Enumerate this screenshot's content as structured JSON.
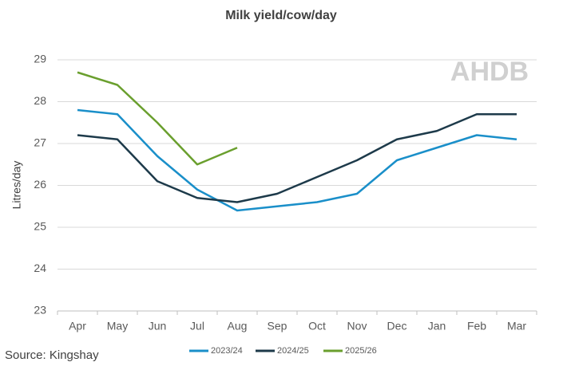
{
  "chart_data": {
    "type": "line",
    "title": "Milk yield/cow/day",
    "ylabel": "Litres/day",
    "source": "Source: Kingshay",
    "watermark": "AHDB",
    "categories": [
      "Apr",
      "May",
      "Jun",
      "Jul",
      "Aug",
      "Sep",
      "Oct",
      "Nov",
      "Dec",
      "Jan",
      "Feb",
      "Mar"
    ],
    "series": [
      {
        "name": "2023/24",
        "color": "#1a8fc9",
        "values": [
          27.8,
          27.7,
          26.7,
          25.9,
          25.4,
          25.5,
          25.6,
          25.8,
          26.6,
          26.9,
          27.2,
          27.1
        ]
      },
      {
        "name": "2024/25",
        "color": "#1d3a4a",
        "values": [
          27.2,
          27.1,
          26.1,
          25.7,
          25.6,
          25.8,
          26.2,
          26.6,
          27.1,
          27.3,
          27.7,
          27.7
        ]
      },
      {
        "name": "2025/26",
        "color": "#6a9f2e",
        "values": [
          28.7,
          28.4,
          27.5,
          26.5,
          26.9,
          null,
          null,
          null,
          null,
          null,
          null,
          null
        ]
      }
    ],
    "ylim": [
      23,
      29
    ],
    "yticks": [
      23,
      24,
      25,
      26,
      27,
      28,
      29
    ],
    "grid": true,
    "legend": "bottom"
  }
}
